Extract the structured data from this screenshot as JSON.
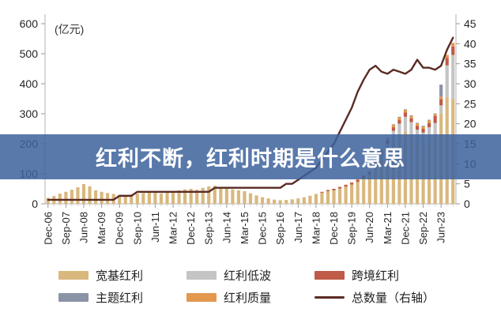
{
  "banner": {
    "text": "红利不断，红利时期是什么意思",
    "bg_color": "#3c619c",
    "text_color": "#ffffff"
  },
  "chart_data": {
    "type": "bar",
    "subtype": "stacked-bar-with-line",
    "title": "",
    "left_axis": {
      "title": "(亿元)",
      "min": 0,
      "max": 600,
      "step": 100
    },
    "right_axis": {
      "min": 0,
      "max": 45,
      "step": 5
    },
    "x_label_every": 3,
    "legend_position": "bottom",
    "x_tick_labels_visible": [
      "Dec-06",
      "Sep-07",
      "Jun-08",
      "Mar-09",
      "Dec-09",
      "Sep-10",
      "Jun-11",
      "Mar-12",
      "Dec-12",
      "Sep-13",
      "Jun-14",
      "Mar-15",
      "Dec-15",
      "Sep-16",
      "Jun-17",
      "Mar-18",
      "Dec-18",
      "Sep-19",
      "Jun-20",
      "Mar-21",
      "Dec-21",
      "Sep-22",
      "Jun-23"
    ],
    "categories": [
      "Dec-06",
      "Mar-07",
      "Jun-07",
      "Sep-07",
      "Dec-07",
      "Mar-08",
      "Jun-08",
      "Sep-08",
      "Dec-08",
      "Mar-09",
      "Jun-09",
      "Sep-09",
      "Dec-09",
      "Mar-10",
      "Jun-10",
      "Sep-10",
      "Dec-10",
      "Mar-11",
      "Jun-11",
      "Sep-11",
      "Dec-11",
      "Mar-12",
      "Jun-12",
      "Sep-12",
      "Dec-12",
      "Mar-13",
      "Jun-13",
      "Sep-13",
      "Dec-13",
      "Mar-14",
      "Jun-14",
      "Sep-14",
      "Dec-14",
      "Mar-15",
      "Jun-15",
      "Sep-15",
      "Dec-15",
      "Mar-16",
      "Jun-16",
      "Sep-16",
      "Dec-16",
      "Mar-17",
      "Jun-17",
      "Sep-17",
      "Dec-17",
      "Mar-18",
      "Jun-18",
      "Sep-18",
      "Dec-18",
      "Mar-19",
      "Jun-19",
      "Sep-19",
      "Dec-19",
      "Mar-20",
      "Jun-20",
      "Sep-20",
      "Dec-20",
      "Mar-21",
      "Jun-21",
      "Sep-21",
      "Dec-21",
      "Mar-22",
      "Jun-22",
      "Sep-22",
      "Dec-22",
      "Mar-23",
      "Jun-23",
      "Sep-23",
      "Dec-23"
    ],
    "series": [
      {
        "key": "kuanji",
        "name": "宽基红利",
        "type": "bar",
        "color": "#d9b87e",
        "values": [
          20,
          26,
          34,
          40,
          47,
          55,
          66,
          58,
          45,
          40,
          36,
          33,
          30,
          29,
          31,
          34,
          36,
          38,
          37,
          35,
          38,
          42,
          45,
          48,
          50,
          47,
          53,
          58,
          60,
          56,
          52,
          48,
          45,
          42,
          35,
          28,
          22,
          18,
          14,
          12,
          13,
          15,
          18,
          22,
          27,
          33,
          37,
          42,
          45,
          51,
          57,
          64,
          73,
          85,
          98,
          120,
          148,
          178,
          205,
          225,
          240,
          222,
          200,
          190,
          205,
          229,
          301,
          354,
          349
        ]
      },
      {
        "key": "diwo",
        "name": "红利低波",
        "type": "bar",
        "color": "#c4c4c4",
        "values": [
          0,
          0,
          0,
          0,
          0,
          0,
          0,
          0,
          0,
          0,
          0,
          0,
          0,
          0,
          0,
          0,
          0,
          0,
          0,
          0,
          0,
          0,
          0,
          0,
          0,
          0,
          0,
          0,
          0,
          0,
          0,
          0,
          0,
          0,
          0,
          0,
          0,
          0,
          0,
          0,
          0,
          0,
          0,
          0,
          0,
          0,
          0,
          0,
          0,
          0,
          0,
          0,
          0,
          0,
          0,
          8,
          14,
          22,
          38,
          42,
          50,
          50,
          47,
          47,
          50,
          40,
          27,
          107,
          147
        ]
      },
      {
        "key": "kuajing",
        "name": "跨境红利",
        "type": "bar",
        "color": "#bf5b47",
        "values": [
          0,
          0,
          0,
          0,
          0,
          0,
          0,
          0,
          0,
          0,
          0,
          0,
          0,
          0,
          0,
          0,
          0,
          0,
          0,
          0,
          0,
          0,
          0,
          0,
          0,
          0,
          0,
          0,
          0,
          0,
          0,
          0,
          0,
          0,
          0,
          0,
          0,
          0,
          0,
          0,
          0,
          0,
          0,
          0,
          0,
          0,
          3,
          4,
          5,
          5,
          6,
          6,
          7,
          7,
          8,
          9,
          10,
          11,
          12,
          13,
          14,
          13,
          13,
          13,
          14,
          24,
          21,
          25,
          28
        ]
      },
      {
        "key": "zhuti",
        "name": "主题红利",
        "type": "bar",
        "color": "#8b93a6",
        "values": [
          0,
          0,
          0,
          0,
          0,
          0,
          0,
          0,
          0,
          0,
          0,
          0,
          0,
          0,
          0,
          0,
          0,
          0,
          0,
          0,
          0,
          0,
          0,
          0,
          0,
          0,
          0,
          0,
          0,
          0,
          0,
          0,
          0,
          0,
          0,
          0,
          0,
          0,
          0,
          0,
          0,
          0,
          0,
          0,
          0,
          0,
          0,
          0,
          0,
          0,
          0,
          0,
          0,
          0,
          0,
          3,
          2,
          2,
          2,
          2,
          2,
          2,
          2,
          2,
          2,
          2,
          40,
          0,
          0
        ]
      },
      {
        "key": "zhiliang",
        "name": "红利质量",
        "type": "bar",
        "color": "#e3984e",
        "values": [
          0,
          0,
          0,
          0,
          0,
          0,
          0,
          0,
          0,
          0,
          0,
          0,
          0,
          0,
          0,
          0,
          0,
          0,
          0,
          0,
          0,
          0,
          0,
          0,
          0,
          0,
          0,
          0,
          0,
          0,
          0,
          0,
          0,
          0,
          0,
          0,
          0,
          0,
          0,
          0,
          0,
          0,
          0,
          0,
          0,
          0,
          0,
          0,
          0,
          1,
          1,
          2,
          2,
          3,
          4,
          5,
          6,
          7,
          8,
          8,
          9,
          8,
          8,
          8,
          9,
          6,
          8,
          10,
          12
        ]
      },
      {
        "key": "total",
        "name": "总数量（右轴）",
        "type": "line",
        "axis": "right",
        "color": "#5a2a23",
        "values": [
          1,
          1,
          1,
          1,
          1,
          1,
          1,
          1,
          1,
          1,
          1,
          1,
          2,
          2,
          2,
          3,
          3,
          3,
          3,
          3,
          3,
          3,
          3,
          3,
          3,
          3,
          3,
          3,
          4,
          4,
          4,
          4,
          4,
          4,
          4,
          4,
          4,
          4,
          4,
          4,
          5,
          5,
          6,
          7,
          8,
          9,
          11,
          13,
          15,
          18,
          21,
          24,
          28,
          31,
          33.5,
          34.5,
          33,
          32.5,
          33.5,
          33,
          32.5,
          33.5,
          36,
          34,
          34,
          33.5,
          34.5,
          38.5,
          41.5
        ]
      }
    ]
  }
}
